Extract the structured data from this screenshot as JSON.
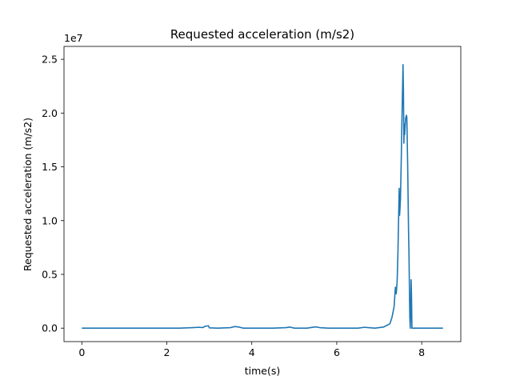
{
  "chart_data": {
    "type": "line",
    "title": "Requested acceleration (m/s2)",
    "xlabel": "time(s)",
    "ylabel": "Requested acceleration (m/s2)",
    "y_offset_label": "1e7",
    "xlim": [
      -0.42,
      8.92
    ],
    "ylim": [
      -1250000,
      26200000
    ],
    "x_ticks": [
      0,
      2,
      4,
      6,
      8
    ],
    "x_tick_labels": [
      "0",
      "2",
      "4",
      "6",
      "8"
    ],
    "y_ticks": [
      0,
      5000000,
      10000000,
      15000000,
      20000000,
      25000000
    ],
    "y_tick_labels": [
      "0.0",
      "0.5",
      "1.0",
      "1.5",
      "2.0",
      "2.5"
    ],
    "grid": false,
    "color": "#1f77b4",
    "series": [
      {
        "x": [
          0.0,
          0.5,
          1.0,
          1.5,
          2.0,
          2.3,
          2.6,
          2.75,
          2.85,
          2.9,
          2.95,
          2.98,
          3.0,
          3.2,
          3.5,
          3.6,
          3.7,
          3.8,
          4.0,
          4.5,
          4.8,
          4.9,
          5.0,
          5.3,
          5.5,
          5.6,
          5.8,
          6.2,
          6.5,
          6.65,
          6.75,
          6.9,
          7.1,
          7.25,
          7.3,
          7.35,
          7.38,
          7.4,
          7.42,
          7.43,
          7.44,
          7.45,
          7.47,
          7.48,
          7.5,
          7.51,
          7.52,
          7.53,
          7.54,
          7.55,
          7.56,
          7.57,
          7.58,
          7.59,
          7.6,
          7.62,
          7.64,
          7.65,
          7.67,
          7.68,
          7.69,
          7.7,
          7.71,
          7.72,
          7.73,
          7.74,
          7.75,
          7.76,
          7.77,
          7.78,
          7.79,
          7.8,
          7.9,
          8.0,
          8.2,
          8.5
        ],
        "y": [
          0,
          0,
          0,
          0,
          0,
          0,
          50000,
          80000,
          60000,
          180000,
          200000,
          220000,
          30000,
          0,
          50000,
          150000,
          100000,
          0,
          0,
          0,
          50000,
          100000,
          0,
          0,
          120000,
          50000,
          0,
          0,
          0,
          80000,
          50000,
          0,
          100000,
          400000,
          1000000,
          2000000,
          3800000,
          3200000,
          4200000,
          5500000,
          7000000,
          9000000,
          13000000,
          10500000,
          12000000,
          14000000,
          16000000,
          18500000,
          20500000,
          22500000,
          24500000,
          22000000,
          17200000,
          19000000,
          18000000,
          19500000,
          19800000,
          19600000,
          15000000,
          12000000,
          9000000,
          7000000,
          4000000,
          1000000,
          0,
          1500000,
          4500000,
          3000000,
          0,
          0,
          0,
          0,
          0,
          0,
          0,
          0
        ]
      }
    ]
  }
}
